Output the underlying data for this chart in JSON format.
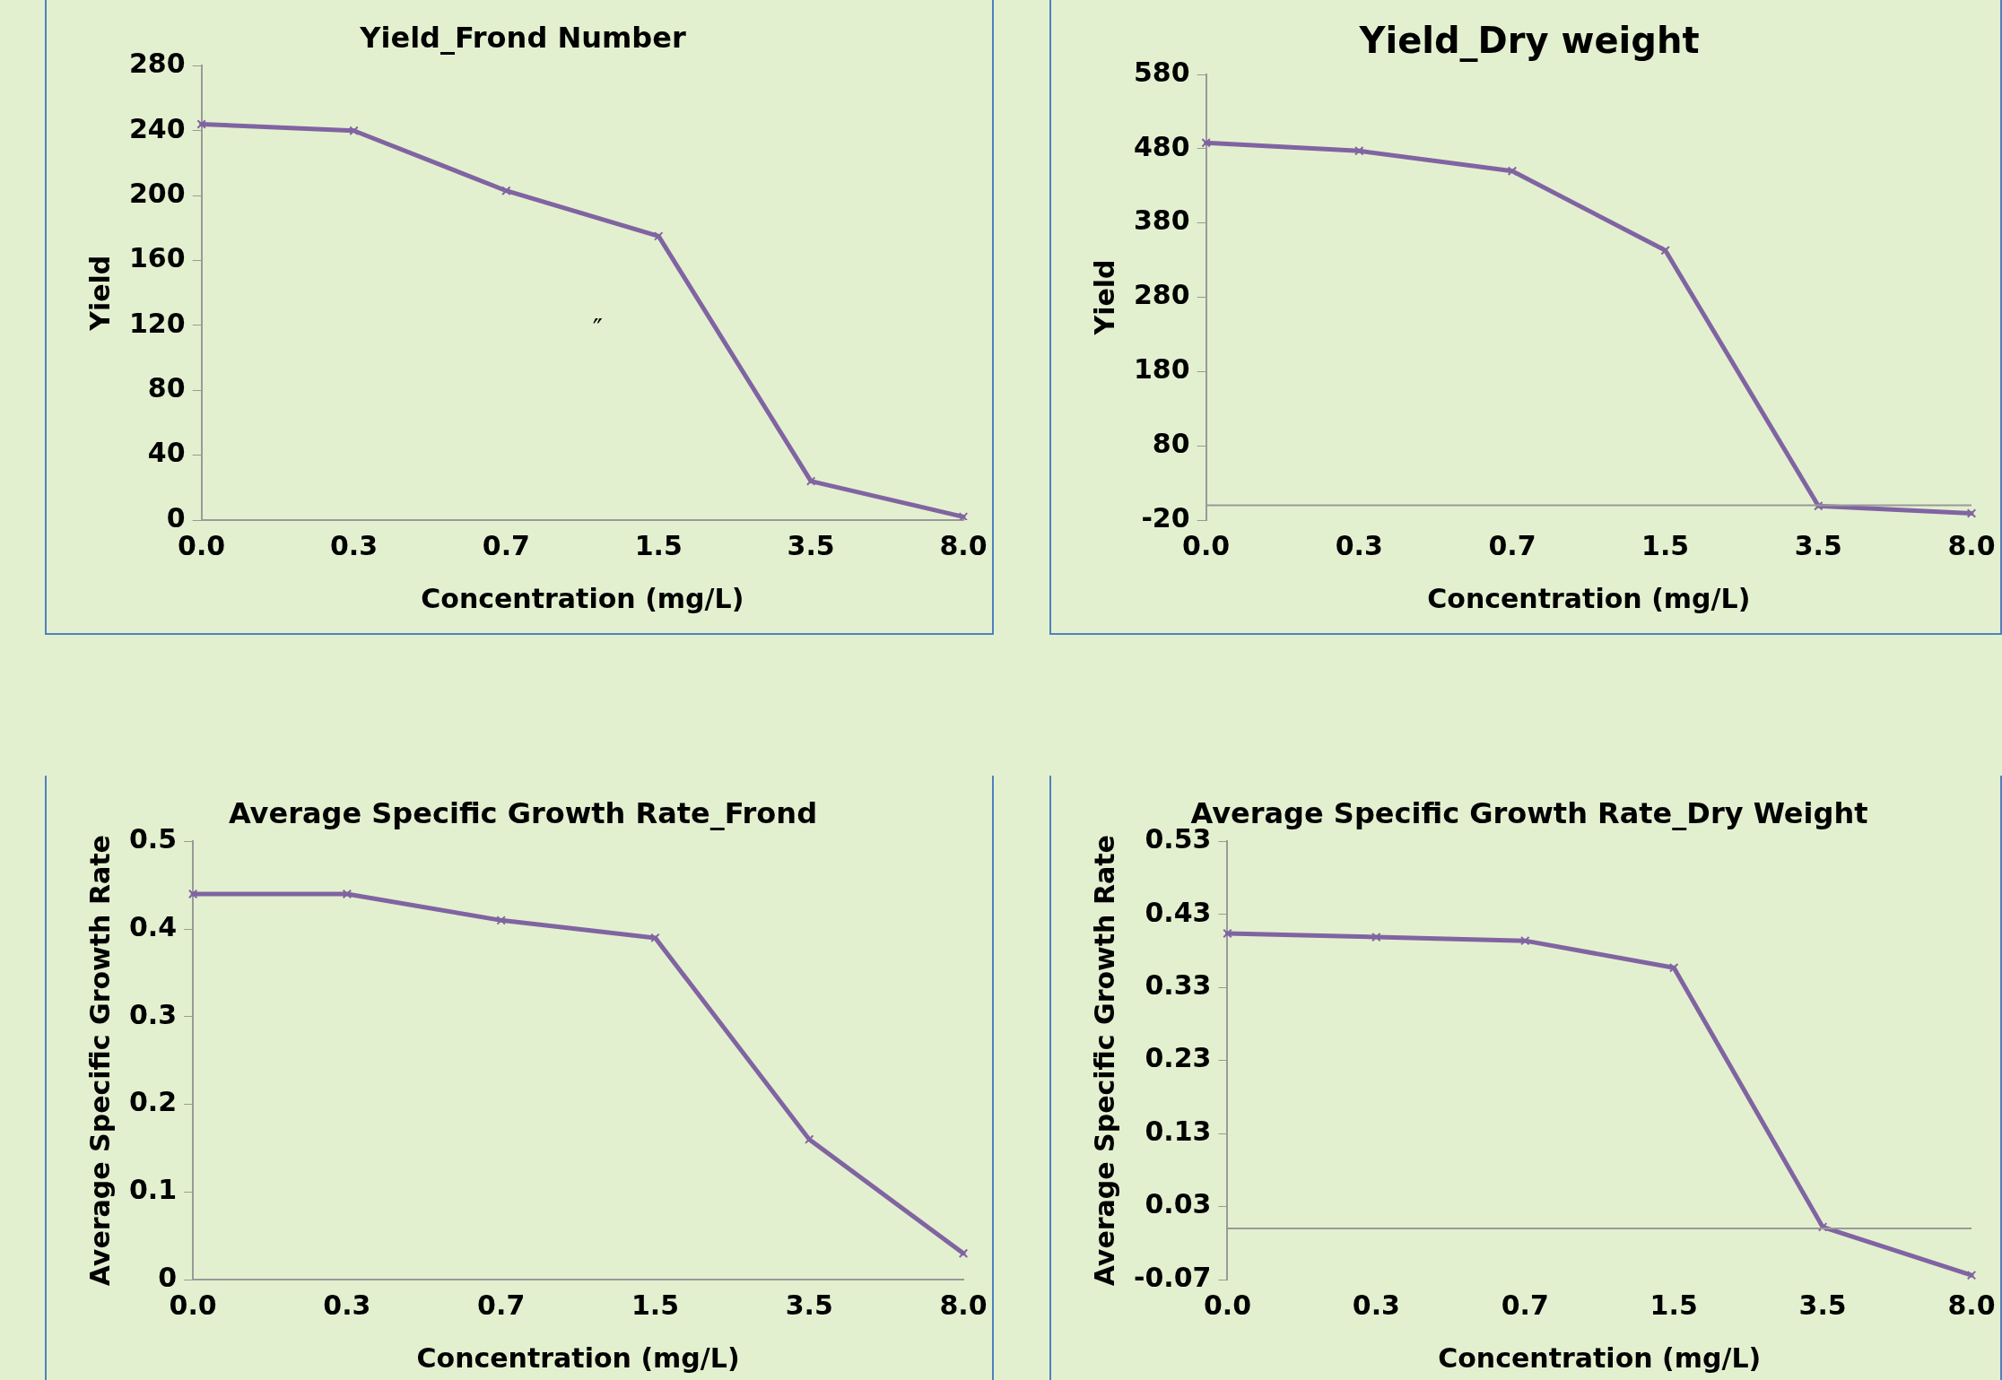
{
  "chart_data": [
    {
      "type": "line",
      "title": "Yield_Frond Number",
      "xlabel": "Concentration (mg/L)",
      "ylabel": "Yield",
      "categories": [
        "0.0",
        "0.3",
        "0.7",
        "1.5",
        "3.5",
        "8.0"
      ],
      "series": [
        {
          "color": "#8064a2",
          "values": [
            244,
            240,
            203,
            175,
            24,
            2
          ]
        }
      ],
      "ylim": [
        0,
        280
      ],
      "yticks": [
        0,
        40,
        80,
        120,
        160,
        200,
        240,
        280
      ],
      "grid": false,
      "legend": false,
      "marker": "cross",
      "line_style": "solid",
      "annotations": [
        "″"
      ]
    },
    {
      "type": "line",
      "title": "Yield_Dry weight",
      "xlabel": "Concentration (mg/L)",
      "ylabel": "Yield",
      "categories": [
        "0.0",
        "0.3",
        "0.7",
        "1.5",
        "3.5",
        "8.0"
      ],
      "series": [
        {
          "color": "#8064a2",
          "values": [
            488,
            477,
            450,
            343,
            -1,
            -11
          ]
        }
      ],
      "ylim": [
        -20,
        580
      ],
      "yticks": [
        -20,
        80,
        180,
        280,
        380,
        480,
        580
      ],
      "grid": false,
      "legend": false,
      "marker": "cross",
      "line_style": "solid"
    },
    {
      "type": "line",
      "title": "Average Specific Growth Rate_Frond",
      "xlabel": "Concentration (mg/L)",
      "ylabel": "Average Specific Growth Rate",
      "categories": [
        "0.0",
        "0.3",
        "0.7",
        "1.5",
        "3.5",
        "8.0"
      ],
      "series": [
        {
          "color": "#8064a2",
          "values": [
            0.44,
            0.44,
            0.41,
            0.39,
            0.16,
            0.03
          ]
        }
      ],
      "ylim": [
        0,
        0.5
      ],
      "yticks": [
        0,
        0.1,
        0.2,
        0.3,
        0.4,
        0.5
      ],
      "grid": false,
      "legend": false,
      "marker": "cross",
      "line_style": "solid"
    },
    {
      "type": "line",
      "title": "Average Specific Growth Rate_Dry Weight",
      "xlabel": "Concentration (mg/L)",
      "ylabel": "Average Specific Growth Rate",
      "categories": [
        "0.0",
        "0.3",
        "0.7",
        "1.5",
        "3.5",
        "8.0"
      ],
      "series": [
        {
          "color": "#8064a2",
          "values": [
            0.404,
            0.399,
            0.394,
            0.357,
            0.002,
            -0.064
          ]
        }
      ],
      "ylim": [
        -0.07,
        0.53
      ],
      "yticks": [
        -0.07,
        0.03,
        0.13,
        0.23,
        0.33,
        0.43,
        0.53
      ],
      "grid": false,
      "legend": false,
      "marker": "cross",
      "line_style": "solid"
    }
  ]
}
